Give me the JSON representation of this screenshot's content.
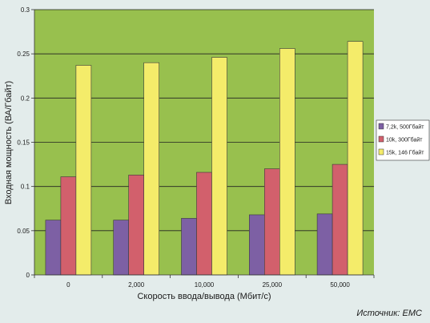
{
  "chart_data": {
    "type": "bar",
    "categories": [
      "0",
      "2,000",
      "10,000",
      "25,000",
      "50,000"
    ],
    "series": [
      {
        "name": "7,2k, 500Гбайт",
        "values": [
          0.062,
          0.062,
          0.064,
          0.068,
          0.069
        ]
      },
      {
        "name": "10k, 300Гбайт",
        "values": [
          0.111,
          0.113,
          0.116,
          0.12,
          0.125
        ]
      },
      {
        "name": "15k, 146 Гбайт",
        "values": [
          0.237,
          0.24,
          0.246,
          0.256,
          0.264
        ]
      }
    ],
    "xlabel": "Скорость ввода/вывода (Мбит/с)",
    "ylabel": "Входная мощность (ВА/Гбайт)",
    "ylim": [
      0,
      0.3
    ],
    "yticks": [
      "0",
      "0.05",
      "0.1",
      "0.15",
      "0.2",
      "0.25",
      "0.3"
    ],
    "grid": true,
    "legend_position": "right",
    "colors": {
      "series": [
        "#7d60a4",
        "#d2606c",
        "#f4ec6a"
      ],
      "plot_background": "#98c04e",
      "page_background": "#e3eceb",
      "gridline": "#222222"
    }
  },
  "source": "Источник: EMC"
}
